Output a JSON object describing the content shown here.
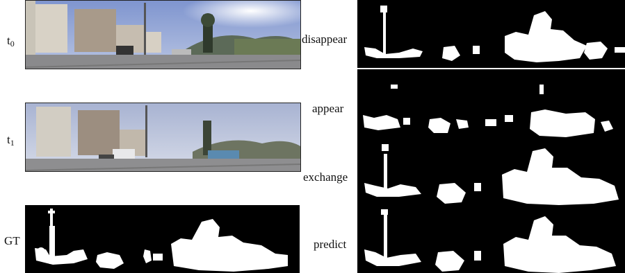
{
  "left_labels": {
    "t0": {
      "base": "t",
      "sub": "0"
    },
    "t1": {
      "base": "t",
      "sub": "1"
    },
    "gt": "GT"
  },
  "right_labels": {
    "disappear": "disappear",
    "appear": "appear",
    "exchange": "exchange",
    "predict": "predict"
  },
  "colors": {
    "mask_background": "#000000",
    "mask_foreground": "#ffffff",
    "sky_t0": "#8fa3d6",
    "sky_t1": "#b9c3dc"
  }
}
